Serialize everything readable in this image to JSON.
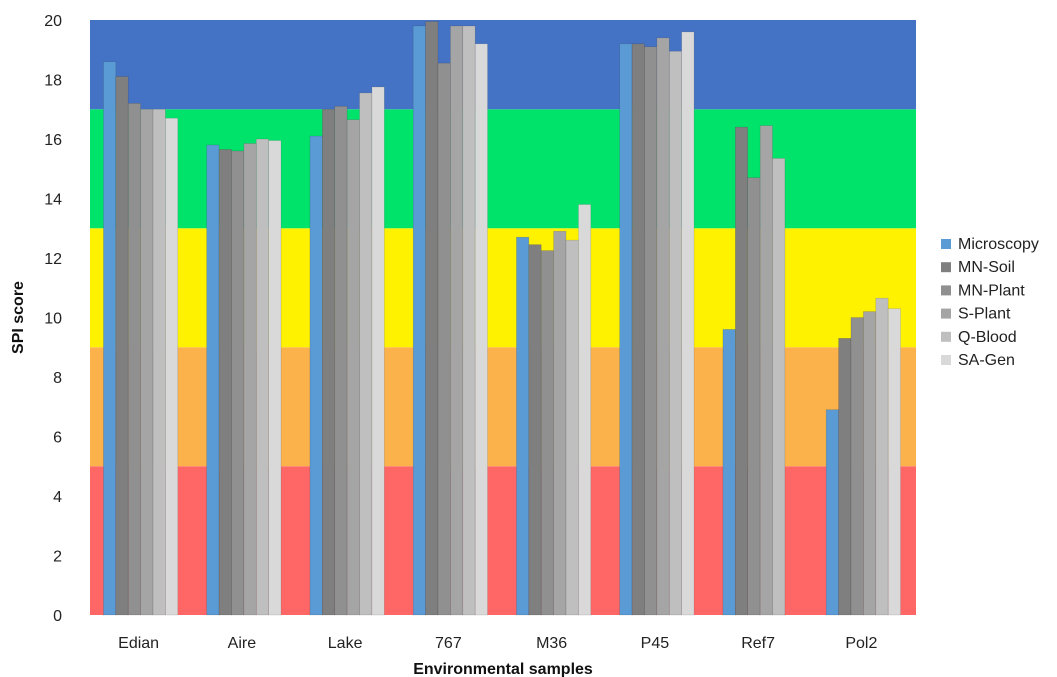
{
  "chart_data": {
    "type": "bar",
    "xlabel": "Environmental samples",
    "ylabel": "SPI score",
    "ylim": [
      0,
      20
    ],
    "yticks": [
      0,
      2,
      4,
      6,
      8,
      10,
      12,
      14,
      16,
      18,
      20
    ],
    "categories": [
      "Edian",
      "Aire",
      "Lake",
      "767",
      "M36",
      "P45",
      "Ref7",
      "Pol2"
    ],
    "series": [
      {
        "name": "Microscopy",
        "color": "#5b9bd5",
        "values": [
          18.6,
          15.8,
          16.1,
          19.8,
          12.7,
          19.2,
          9.6,
          6.9
        ]
      },
      {
        "name": "MN-Soil",
        "color": "#7f7f7f",
        "values": [
          18.1,
          15.65,
          17.0,
          19.95,
          12.45,
          19.2,
          16.4,
          9.3
        ]
      },
      {
        "name": "MN-Plant",
        "color": "#909090",
        "values": [
          17.2,
          15.6,
          17.1,
          18.55,
          12.25,
          19.1,
          14.7,
          10.0
        ]
      },
      {
        "name": "S-Plant",
        "color": "#a5a5a5",
        "values": [
          17.0,
          15.85,
          16.65,
          19.8,
          12.9,
          19.4,
          16.45,
          10.2
        ]
      },
      {
        "name": "Q-Blood",
        "color": "#bfbfbf",
        "values": [
          17.0,
          16.0,
          17.55,
          19.8,
          12.6,
          18.95,
          15.35,
          10.65
        ]
      },
      {
        "name": "SA-Gen",
        "color": "#d9d9d9",
        "values": [
          16.7,
          15.95,
          17.75,
          19.2,
          13.8,
          19.6,
          null,
          10.3
        ]
      }
    ],
    "bands": [
      {
        "from": 0,
        "to": 5,
        "color": "#ff6666"
      },
      {
        "from": 5,
        "to": 9,
        "color": "#fcb24a"
      },
      {
        "from": 9,
        "to": 13,
        "color": "#fff200"
      },
      {
        "from": 13,
        "to": 17,
        "color": "#00e36b"
      },
      {
        "from": 17,
        "to": 20,
        "color": "#4472c4"
      }
    ],
    "legend_position": "right"
  }
}
